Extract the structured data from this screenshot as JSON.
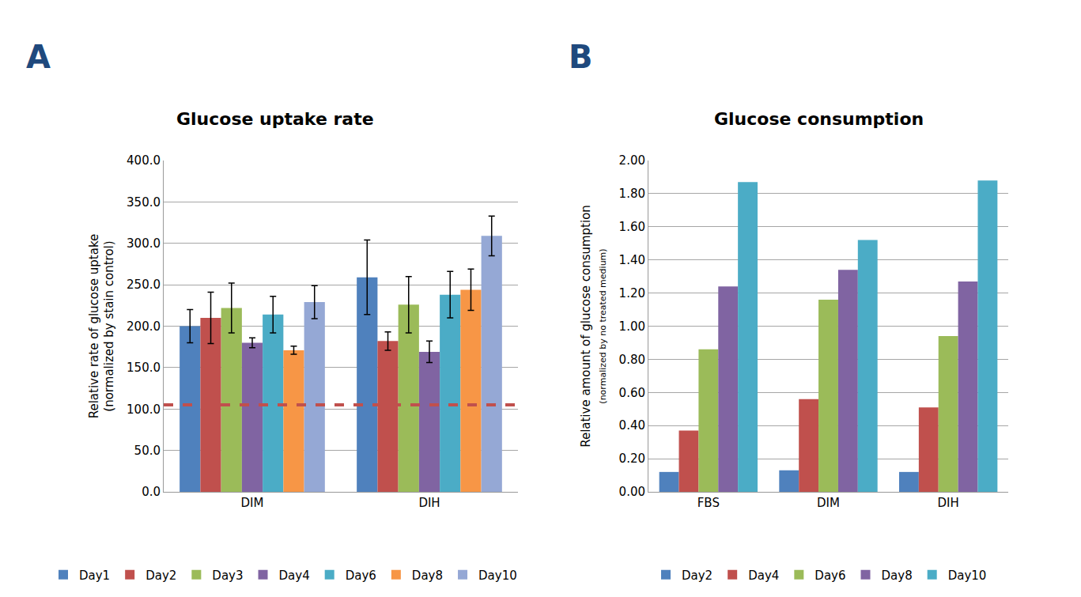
{
  "chart_data": [
    {
      "type": "bar",
      "title": "Glucose uptake rate",
      "annotations": [
        "A"
      ],
      "ylabel": "Relative rate of glucose uptake\n(normalized by stain control)",
      "categories": [
        "DIM",
        "DIH"
      ],
      "series": [
        {
          "name": "Day1",
          "color": "#4F81BD",
          "values": [
            200,
            259
          ],
          "errors": [
            20,
            45
          ]
        },
        {
          "name": "Day2",
          "color": "#C0504D",
          "values": [
            210,
            182
          ],
          "errors": [
            31,
            11
          ]
        },
        {
          "name": "Day3",
          "color": "#9BBB59",
          "values": [
            222,
            226
          ],
          "errors": [
            30,
            34
          ]
        },
        {
          "name": "Day4",
          "color": "#8064A2",
          "values": [
            180,
            169
          ],
          "errors": [
            6,
            13
          ]
        },
        {
          "name": "Day6",
          "color": "#4BACC6",
          "values": [
            214,
            238
          ],
          "errors": [
            22,
            28
          ]
        },
        {
          "name": "Day8",
          "color": "#F79646",
          "values": [
            171,
            244
          ],
          "errors": [
            5,
            25
          ]
        },
        {
          "name": "Day10",
          "color": "#95A8D5",
          "values": [
            229,
            309
          ],
          "errors": [
            20,
            24
          ]
        }
      ],
      "reference_line": 105,
      "ylim": [
        0,
        400
      ],
      "yticks": [
        {
          "value": 0,
          "label": "0.0"
        },
        {
          "value": 50,
          "label": "50.0"
        },
        {
          "value": 100,
          "label": "100.0"
        },
        {
          "value": 150,
          "label": "150.0"
        },
        {
          "value": 200,
          "label": "200.0"
        },
        {
          "value": 250,
          "label": "250.0"
        },
        {
          "value": 300,
          "label": "300.0"
        },
        {
          "value": 350,
          "label": "350.0"
        },
        {
          "value": 400,
          "label": "400.0"
        }
      ],
      "grid": true,
      "legend": "bottom",
      "data_labels": false
    },
    {
      "type": "bar",
      "title": "Glucose consumption",
      "annotations": [
        "B"
      ],
      "ylabel": "Relative amount of glucose consumption\n(normalized by no treated medium)",
      "categories": [
        "FBS",
        "DIM",
        "DIH"
      ],
      "series": [
        {
          "name": "Day2",
          "color": "#4F81BD",
          "values": [
            0.12,
            0.13,
            0.12
          ]
        },
        {
          "name": "Day4",
          "color": "#C0504D",
          "values": [
            0.37,
            0.56,
            0.51
          ]
        },
        {
          "name": "Day6",
          "color": "#9BBB59",
          "values": [
            0.86,
            1.16,
            0.94
          ]
        },
        {
          "name": "Day8",
          "color": "#8064A2",
          "values": [
            1.24,
            1.34,
            1.27
          ]
        },
        {
          "name": "Day10",
          "color": "#4BACC6",
          "values": [
            1.87,
            1.52,
            1.88
          ]
        }
      ],
      "ylim": [
        0,
        2
      ],
      "yticks": [
        {
          "value": 0,
          "label": "0.00"
        },
        {
          "value": 0.2,
          "label": "0.20"
        },
        {
          "value": 0.4,
          "label": "0.40"
        },
        {
          "value": 0.6,
          "label": "0.60"
        },
        {
          "value": 0.8,
          "label": "0.80"
        },
        {
          "value": 1,
          "label": "1.00"
        },
        {
          "value": 1.2,
          "label": "1.20"
        },
        {
          "value": 1.4,
          "label": "1.40"
        },
        {
          "value": 1.6,
          "label": "1.60"
        },
        {
          "value": 1.8,
          "label": "1.80"
        },
        {
          "value": 2,
          "label": "2.00"
        }
      ],
      "grid": true,
      "legend": "bottom",
      "data_labels": false
    }
  ]
}
